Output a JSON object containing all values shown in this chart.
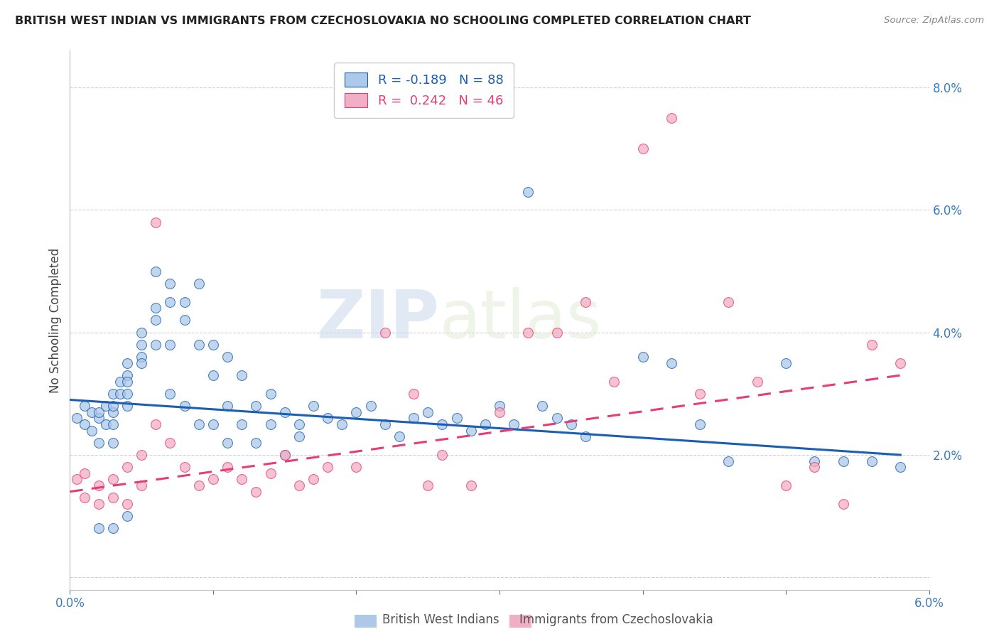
{
  "title": "BRITISH WEST INDIAN VS IMMIGRANTS FROM CZECHOSLOVAKIA NO SCHOOLING COMPLETED CORRELATION CHART",
  "source": "Source: ZipAtlas.com",
  "ylabel_label": "No Schooling Completed",
  "xlim": [
    0.0,
    0.06
  ],
  "ylim": [
    -0.002,
    0.086
  ],
  "xticks": [
    0.0,
    0.01,
    0.02,
    0.03,
    0.04,
    0.05,
    0.06
  ],
  "yticks": [
    0.0,
    0.02,
    0.04,
    0.06,
    0.08
  ],
  "ytick_labels": [
    "",
    "2.0%",
    "4.0%",
    "6.0%",
    "8.0%"
  ],
  "xtick_labels": [
    "0.0%",
    "",
    "",
    "",
    "",
    "",
    "6.0%"
  ],
  "blue_R": -0.189,
  "blue_N": 88,
  "pink_R": 0.242,
  "pink_N": 46,
  "blue_color": "#adc8e8",
  "pink_color": "#f2aec4",
  "blue_line_color": "#1a5fb4",
  "pink_line_color": "#e63d78",
  "watermark_zip": "ZIP",
  "watermark_atlas": "atlas",
  "legend_label_blue": "British West Indians",
  "legend_label_pink": "Immigrants from Czechoslovakia",
  "blue_scatter_x": [
    0.0005,
    0.001,
    0.001,
    0.0015,
    0.0015,
    0.002,
    0.002,
    0.002,
    0.0025,
    0.0025,
    0.003,
    0.003,
    0.003,
    0.003,
    0.003,
    0.0035,
    0.0035,
    0.004,
    0.004,
    0.004,
    0.004,
    0.004,
    0.005,
    0.005,
    0.005,
    0.005,
    0.006,
    0.006,
    0.006,
    0.006,
    0.007,
    0.007,
    0.007,
    0.007,
    0.008,
    0.008,
    0.008,
    0.009,
    0.009,
    0.009,
    0.01,
    0.01,
    0.01,
    0.011,
    0.011,
    0.011,
    0.012,
    0.012,
    0.013,
    0.013,
    0.014,
    0.014,
    0.015,
    0.015,
    0.016,
    0.016,
    0.017,
    0.018,
    0.019,
    0.02,
    0.021,
    0.022,
    0.023,
    0.024,
    0.025,
    0.026,
    0.027,
    0.028,
    0.029,
    0.03,
    0.031,
    0.032,
    0.033,
    0.034,
    0.035,
    0.036,
    0.04,
    0.042,
    0.044,
    0.046,
    0.05,
    0.052,
    0.054,
    0.056,
    0.058,
    0.002,
    0.003,
    0.004
  ],
  "blue_scatter_y": [
    0.026,
    0.025,
    0.028,
    0.024,
    0.027,
    0.026,
    0.027,
    0.022,
    0.025,
    0.028,
    0.03,
    0.027,
    0.025,
    0.028,
    0.022,
    0.03,
    0.032,
    0.035,
    0.033,
    0.03,
    0.028,
    0.032,
    0.038,
    0.036,
    0.04,
    0.035,
    0.044,
    0.042,
    0.038,
    0.05,
    0.048,
    0.045,
    0.038,
    0.03,
    0.045,
    0.042,
    0.028,
    0.048,
    0.038,
    0.025,
    0.038,
    0.033,
    0.025,
    0.036,
    0.028,
    0.022,
    0.033,
    0.025,
    0.028,
    0.022,
    0.03,
    0.025,
    0.027,
    0.02,
    0.025,
    0.023,
    0.028,
    0.026,
    0.025,
    0.027,
    0.028,
    0.025,
    0.023,
    0.026,
    0.027,
    0.025,
    0.026,
    0.024,
    0.025,
    0.028,
    0.025,
    0.063,
    0.028,
    0.026,
    0.025,
    0.023,
    0.036,
    0.035,
    0.025,
    0.019,
    0.035,
    0.019,
    0.019,
    0.019,
    0.018,
    0.008,
    0.008,
    0.01
  ],
  "pink_scatter_x": [
    0.0005,
    0.001,
    0.001,
    0.002,
    0.002,
    0.003,
    0.003,
    0.004,
    0.004,
    0.005,
    0.005,
    0.006,
    0.006,
    0.007,
    0.008,
    0.009,
    0.01,
    0.011,
    0.012,
    0.013,
    0.014,
    0.015,
    0.016,
    0.017,
    0.018,
    0.02,
    0.022,
    0.024,
    0.025,
    0.026,
    0.028,
    0.03,
    0.032,
    0.034,
    0.036,
    0.038,
    0.04,
    0.042,
    0.044,
    0.046,
    0.048,
    0.05,
    0.052,
    0.054,
    0.056,
    0.058
  ],
  "pink_scatter_y": [
    0.016,
    0.017,
    0.013,
    0.015,
    0.012,
    0.016,
    0.013,
    0.018,
    0.012,
    0.015,
    0.02,
    0.025,
    0.058,
    0.022,
    0.018,
    0.015,
    0.016,
    0.018,
    0.016,
    0.014,
    0.017,
    0.02,
    0.015,
    0.016,
    0.018,
    0.018,
    0.04,
    0.03,
    0.015,
    0.02,
    0.015,
    0.027,
    0.04,
    0.04,
    0.045,
    0.032,
    0.07,
    0.075,
    0.03,
    0.045,
    0.032,
    0.015,
    0.018,
    0.012,
    0.038,
    0.035
  ]
}
